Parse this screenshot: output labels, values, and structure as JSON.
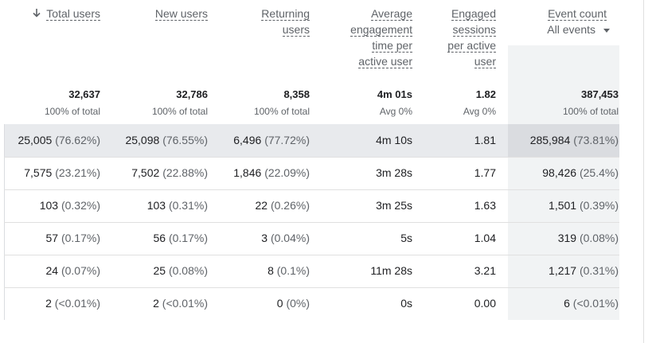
{
  "columns": [
    {
      "key": "total_users",
      "label_lines": [
        "Total users"
      ],
      "sorted": true,
      "total": "32,637",
      "total_sub": "100% of total"
    },
    {
      "key": "new_users",
      "label_lines": [
        "New users"
      ],
      "total": "32,786",
      "total_sub": "100% of total"
    },
    {
      "key": "returning_users",
      "label_lines": [
        "Returning",
        "users"
      ],
      "total": "8,358",
      "total_sub": "100% of total"
    },
    {
      "key": "avg_engagement",
      "label_lines": [
        "Average",
        "engagement",
        "time per",
        "active user"
      ],
      "total": "4m 01s",
      "total_sub": "Avg 0%"
    },
    {
      "key": "engaged_sessions",
      "label_lines": [
        "Engaged",
        "sessions",
        "per active",
        "user"
      ],
      "total": "1.82",
      "total_sub": "Avg 0%"
    },
    {
      "key": "event_count",
      "label_lines": [
        "Event count"
      ],
      "selector": "All events",
      "total": "387,453",
      "total_sub": "100% of total"
    }
  ],
  "rows": [
    {
      "total_users": {
        "v": "25,005",
        "p": "(76.62%)"
      },
      "new_users": {
        "v": "25,098",
        "p": "(76.55%)"
      },
      "returning_users": {
        "v": "6,496",
        "p": "(77.72%)"
      },
      "avg_engagement": "4m 10s",
      "engaged_sessions": "1.81",
      "event_count": {
        "v": "285,984",
        "p": "(73.81%)"
      }
    },
    {
      "total_users": {
        "v": "7,575",
        "p": "(23.21%)"
      },
      "new_users": {
        "v": "7,502",
        "p": "(22.88%)"
      },
      "returning_users": {
        "v": "1,846",
        "p": "(22.09%)"
      },
      "avg_engagement": "3m 28s",
      "engaged_sessions": "1.77",
      "event_count": {
        "v": "98,426",
        "p": "(25.4%)"
      }
    },
    {
      "total_users": {
        "v": "103",
        "p": "(0.32%)"
      },
      "new_users": {
        "v": "103",
        "p": "(0.31%)"
      },
      "returning_users": {
        "v": "22",
        "p": "(0.26%)"
      },
      "avg_engagement": "3m 25s",
      "engaged_sessions": "1.63",
      "event_count": {
        "v": "1,501",
        "p": "(0.39%)"
      }
    },
    {
      "total_users": {
        "v": "57",
        "p": "(0.17%)"
      },
      "new_users": {
        "v": "56",
        "p": "(0.17%)"
      },
      "returning_users": {
        "v": "3",
        "p": "(0.04%)"
      },
      "avg_engagement": "5s",
      "engaged_sessions": "1.04",
      "event_count": {
        "v": "319",
        "p": "(0.08%)"
      }
    },
    {
      "total_users": {
        "v": "24",
        "p": "(0.07%)"
      },
      "new_users": {
        "v": "25",
        "p": "(0.08%)"
      },
      "returning_users": {
        "v": "8",
        "p": "(0.1%)"
      },
      "avg_engagement": "11m 28s",
      "engaged_sessions": "3.21",
      "event_count": {
        "v": "1,217",
        "p": "(0.31%)"
      }
    },
    {
      "total_users": {
        "v": "2",
        "p": "(<0.01%)"
      },
      "new_users": {
        "v": "2",
        "p": "(<0.01%)"
      },
      "returning_users": {
        "v": "0",
        "p": "(0%)"
      },
      "avg_engagement": "0s",
      "engaged_sessions": "0.00",
      "event_count": {
        "v": "6",
        "p": "(<0.01%)"
      }
    }
  ],
  "icons": {
    "sort": "arrow-down-icon",
    "dropdown": "caret-down-icon"
  },
  "colors": {
    "highlight_row": "#e8eaed",
    "shaded_column": "#f1f3f4"
  }
}
